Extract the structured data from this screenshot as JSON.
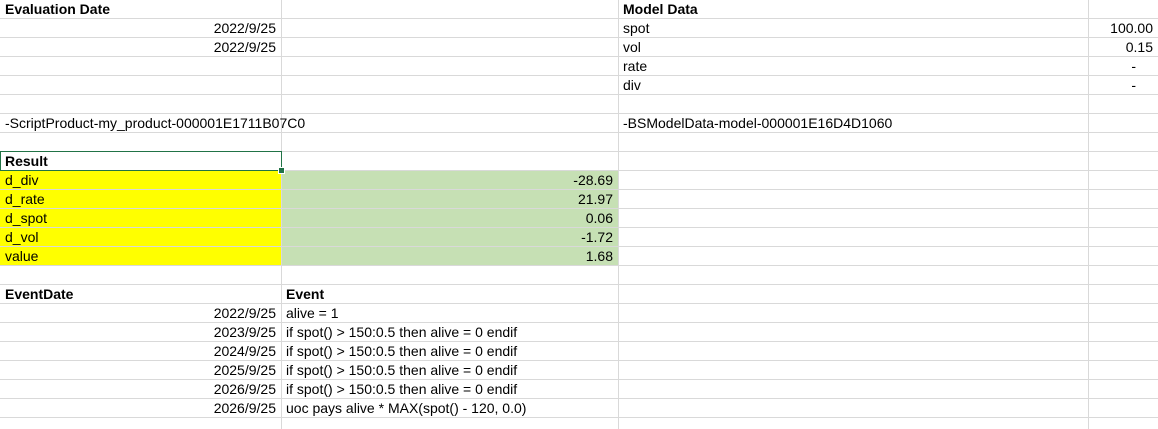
{
  "colors": {
    "gridline": "#d9d9d9",
    "highlight_yellow": "#ffff00",
    "highlight_green": "#c6e0b4",
    "selection": "#217346"
  },
  "evaluation": {
    "header": "Evaluation Date",
    "dates": [
      "2022/9/25",
      "2022/9/25"
    ],
    "product_handle": "-ScriptProduct-my_product-000001E1711B07C0"
  },
  "model": {
    "header": "Model Data",
    "params": [
      {
        "name": "spot",
        "value": "100.00"
      },
      {
        "name": "vol",
        "value": "0.15"
      },
      {
        "name": "rate",
        "value": "-"
      },
      {
        "name": "div",
        "value": "-"
      }
    ],
    "model_handle": "-BSModelData-model-000001E16D4D1060"
  },
  "result": {
    "header": "Result",
    "rows": [
      {
        "label": "d_div",
        "value": "-28.69"
      },
      {
        "label": "d_rate",
        "value": "21.97"
      },
      {
        "label": "d_spot",
        "value": "0.06"
      },
      {
        "label": "d_vol",
        "value": "-1.72"
      },
      {
        "label": "value",
        "value": "1.68"
      }
    ]
  },
  "events": {
    "date_header": "EventDate",
    "event_header": "Event",
    "rows": [
      {
        "date": "2022/9/25",
        "event": "alive = 1"
      },
      {
        "date": "2023/9/25",
        "event": "if spot() > 150:0.5 then alive = 0 endif"
      },
      {
        "date": "2024/9/25",
        "event": "if spot() > 150:0.5 then alive = 0 endif"
      },
      {
        "date": "2025/9/25",
        "event": "if spot() > 150:0.5 then alive = 0 endif"
      },
      {
        "date": "2026/9/25",
        "event": "if spot() > 150:0.5 then alive = 0 endif"
      },
      {
        "date": "2026/9/25",
        "event": "uoc pays alive * MAX(spot() - 120, 0.0)"
      }
    ]
  }
}
